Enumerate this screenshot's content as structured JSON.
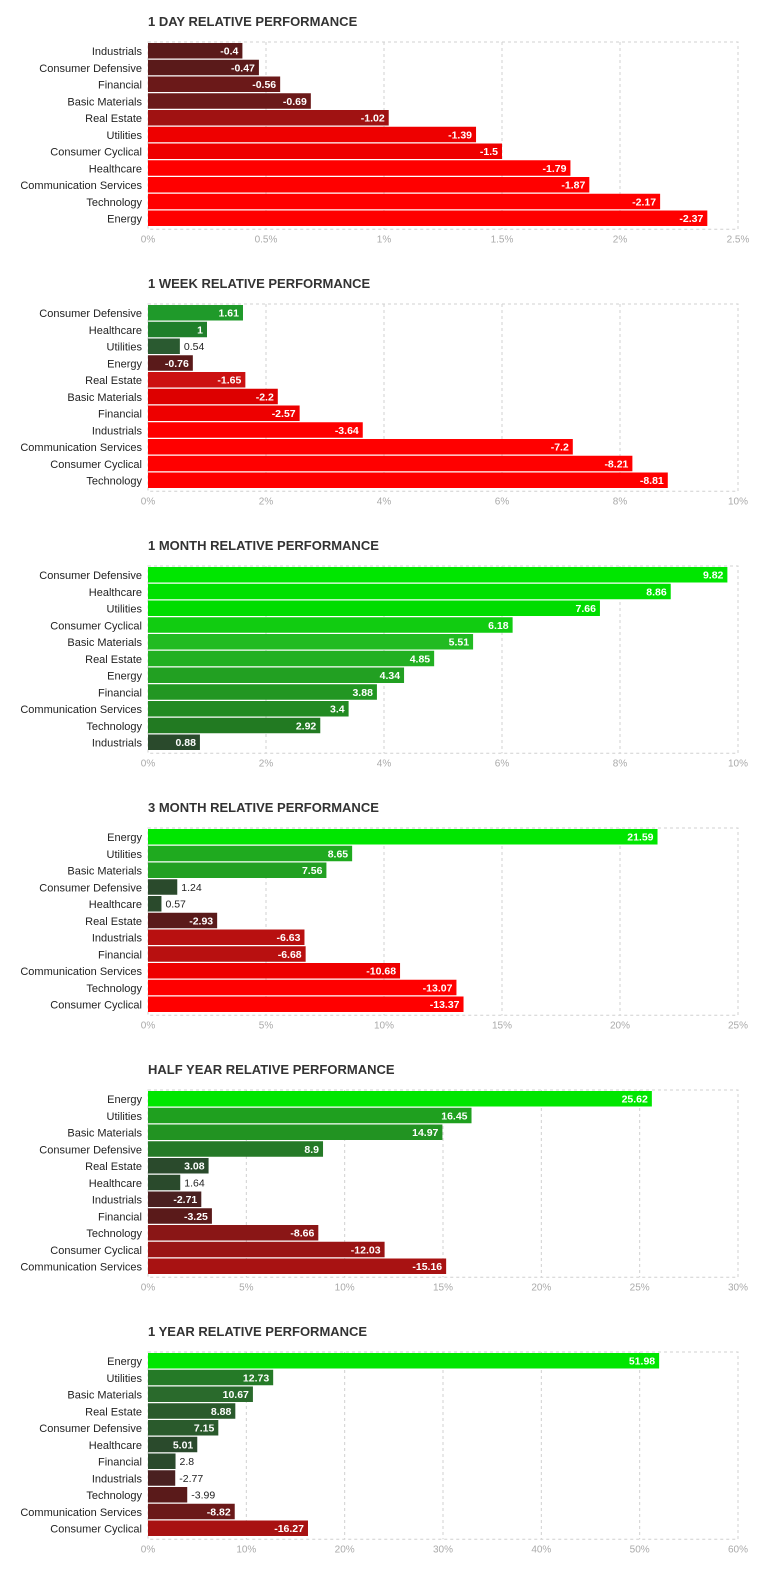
{
  "chart_data": [
    {
      "type": "bar",
      "orientation": "horizontal",
      "title": "1 DAY RELATIVE PERFORMANCE",
      "categories": [
        "Industrials",
        "Consumer Defensive",
        "Financial",
        "Basic Materials",
        "Real Estate",
        "Utilities",
        "Consumer Cyclical",
        "Healthcare",
        "Communication Services",
        "Technology",
        "Energy"
      ],
      "values": [
        -0.4,
        -0.47,
        -0.56,
        -0.69,
        -1.02,
        -1.39,
        -1.5,
        -1.79,
        -1.87,
        -2.17,
        -2.37
      ],
      "value_labels": [
        "-0.4",
        "-0.47",
        "-0.56",
        "-0.69",
        "-1.02",
        "-1.39",
        "-1.5",
        "-1.79",
        "-1.87",
        "-2.17",
        "-2.37"
      ],
      "xlim": [
        0,
        2.5
      ],
      "xticks": [
        0,
        0.5,
        1,
        1.5,
        2,
        2.5
      ],
      "xtick_labels": [
        "0%",
        "0.5%",
        "1%",
        "1.5%",
        "2%",
        "2.5%"
      ],
      "grid": true,
      "bar_colors": [
        "#5a1a1a",
        "#5a1a1a",
        "#6b1919",
        "#6b1919",
        "#a01212",
        "#ee0000",
        "#ee0000",
        "#ff0000",
        "#ff0000",
        "#ff0000",
        "#ff0000"
      ]
    },
    {
      "type": "bar",
      "orientation": "horizontal",
      "title": "1 WEEK RELATIVE PERFORMANCE",
      "categories": [
        "Consumer Defensive",
        "Healthcare",
        "Utilities",
        "Energy",
        "Real Estate",
        "Basic Materials",
        "Financial",
        "Industrials",
        "Communication Services",
        "Consumer Cyclical",
        "Technology"
      ],
      "values": [
        1.61,
        1,
        0.54,
        -0.76,
        -1.65,
        -2.2,
        -2.57,
        -3.64,
        -7.2,
        -8.21,
        -8.81
      ],
      "value_labels": [
        "1.61",
        "1",
        "0.54",
        "-0.76",
        "-1.65",
        "-2.2",
        "-2.57",
        "-3.64",
        "-7.2",
        "-8.21",
        "-8.81"
      ],
      "xlim": [
        0,
        10
      ],
      "xticks": [
        0,
        2,
        4,
        6,
        8,
        10
      ],
      "xtick_labels": [
        "0%",
        "2%",
        "4%",
        "6%",
        "8%",
        "10%"
      ],
      "grid": true,
      "bar_colors": [
        "#1f9a2a",
        "#1f7f2a",
        "#2a5a30",
        "#5a1a1a",
        "#cc1111",
        "#dd0000",
        "#ee0000",
        "#ff0000",
        "#ff0000",
        "#ff0000",
        "#ff0000"
      ]
    },
    {
      "type": "bar",
      "orientation": "horizontal",
      "title": "1 MONTH RELATIVE PERFORMANCE",
      "categories": [
        "Consumer Defensive",
        "Healthcare",
        "Utilities",
        "Consumer Cyclical",
        "Basic Materials",
        "Real Estate",
        "Energy",
        "Financial",
        "Communication Services",
        "Technology",
        "Industrials"
      ],
      "values": [
        9.82,
        8.86,
        7.66,
        6.18,
        5.51,
        4.85,
        4.34,
        3.88,
        3.4,
        2.92,
        0.88
      ],
      "value_labels": [
        "9.82",
        "8.86",
        "7.66",
        "6.18",
        "5.51",
        "4.85",
        "4.34",
        "3.88",
        "3.4",
        "2.92",
        "0.88"
      ],
      "xlim": [
        0,
        10
      ],
      "xticks": [
        0,
        2,
        4,
        6,
        8,
        10
      ],
      "xtick_labels": [
        "0%",
        "2%",
        "4%",
        "6%",
        "8%",
        "10%"
      ],
      "grid": true,
      "bar_colors": [
        "#00e600",
        "#00e000",
        "#00dd00",
        "#11cc11",
        "#22bb22",
        "#22b022",
        "#22a022",
        "#229622",
        "#228a22",
        "#227a22",
        "#2a4a2c"
      ]
    },
    {
      "type": "bar",
      "orientation": "horizontal",
      "title": "3 MONTH RELATIVE PERFORMANCE",
      "categories": [
        "Energy",
        "Utilities",
        "Basic Materials",
        "Consumer Defensive",
        "Healthcare",
        "Real Estate",
        "Industrials",
        "Financial",
        "Communication Services",
        "Technology",
        "Consumer Cyclical"
      ],
      "values": [
        21.59,
        8.65,
        7.56,
        1.24,
        0.57,
        -2.93,
        -6.63,
        -6.68,
        -10.68,
        -13.07,
        -13.37
      ],
      "value_labels": [
        "21.59",
        "8.65",
        "7.56",
        "1.24",
        "0.57",
        "-2.93",
        "-6.63",
        "-6.68",
        "-10.68",
        "-13.07",
        "-13.37"
      ],
      "xlim": [
        0,
        25
      ],
      "xticks": [
        0,
        5,
        10,
        15,
        20,
        25
      ],
      "xtick_labels": [
        "0%",
        "5%",
        "10%",
        "15%",
        "20%",
        "25%"
      ],
      "grid": true,
      "bar_colors": [
        "#00e600",
        "#1faa1f",
        "#22a022",
        "#2a4a2c",
        "#2a4a2c",
        "#5a1a1a",
        "#b81010",
        "#b81010",
        "#ee0000",
        "#ff0000",
        "#ff0000"
      ]
    },
    {
      "type": "bar",
      "orientation": "horizontal",
      "title": "HALF YEAR RELATIVE PERFORMANCE",
      "categories": [
        "Energy",
        "Utilities",
        "Basic Materials",
        "Consumer Defensive",
        "Real Estate",
        "Healthcare",
        "Industrials",
        "Financial",
        "Technology",
        "Consumer Cyclical",
        "Communication Services"
      ],
      "values": [
        25.62,
        16.45,
        14.97,
        8.9,
        3.08,
        1.64,
        -2.71,
        -3.25,
        -8.66,
        -12.03,
        -15.16
      ],
      "value_labels": [
        "25.62",
        "16.45",
        "14.97",
        "8.9",
        "3.08",
        "1.64",
        "-2.71",
        "-3.25",
        "-8.66",
        "-12.03",
        "-15.16"
      ],
      "xlim": [
        0,
        30
      ],
      "xticks": [
        0,
        5,
        10,
        15,
        20,
        25,
        30
      ],
      "xtick_labels": [
        "0%",
        "5%",
        "10%",
        "15%",
        "20%",
        "25%",
        "30%"
      ],
      "grid": true,
      "bar_colors": [
        "#00e600",
        "#1fa01f",
        "#229322",
        "#257a27",
        "#2a4a2c",
        "#2a4a2c",
        "#4a2020",
        "#5a1a1a",
        "#8a1616",
        "#9a1414",
        "#a81212"
      ]
    },
    {
      "type": "bar",
      "orientation": "horizontal",
      "title": "1 YEAR RELATIVE PERFORMANCE",
      "categories": [
        "Energy",
        "Utilities",
        "Basic Materials",
        "Real Estate",
        "Consumer Defensive",
        "Healthcare",
        "Financial",
        "Industrials",
        "Technology",
        "Communication Services",
        "Consumer Cyclical"
      ],
      "values": [
        51.98,
        12.73,
        10.67,
        8.88,
        7.15,
        5.01,
        2.8,
        -2.77,
        -3.99,
        -8.82,
        -16.27
      ],
      "value_labels": [
        "51.98",
        "12.73",
        "10.67",
        "8.88",
        "7.15",
        "5.01",
        "2.8",
        "-2.77",
        "-3.99",
        "-8.82",
        "-16.27"
      ],
      "xlim": [
        0,
        60
      ],
      "xticks": [
        0,
        10,
        20,
        30,
        40,
        50,
        60
      ],
      "xtick_labels": [
        "0%",
        "10%",
        "20%",
        "30%",
        "40%",
        "50%",
        "60%"
      ],
      "grid": true,
      "bar_colors": [
        "#00e600",
        "#257a27",
        "#2a6a2c",
        "#2a5a2c",
        "#2a5a2c",
        "#2a4a2c",
        "#2a4a2c",
        "#4a2020",
        "#5a1a1a",
        "#6b1919",
        "#a81212"
      ]
    }
  ]
}
